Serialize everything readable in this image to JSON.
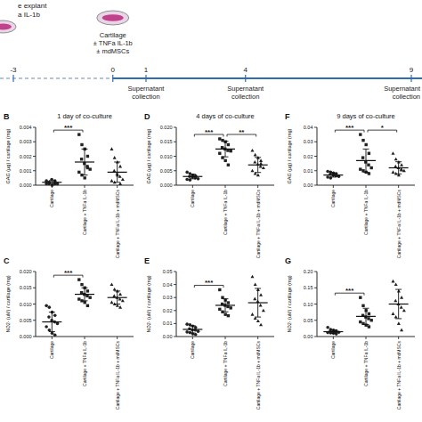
{
  "timeline": {
    "left_text": [
      "e explant",
      "a IL-1b"
    ],
    "days": [
      -3,
      0,
      1,
      4,
      9
    ],
    "center_text": [
      "Cartilage",
      "± TNFa IL-1b",
      "± mdMSCs"
    ],
    "events": [
      {
        "day": 1,
        "text": [
          "Supernatant",
          "collection"
        ]
      },
      {
        "day": 4,
        "text": [
          "Supernatant",
          "collection"
        ]
      },
      {
        "day": 9,
        "text": [
          "Supernatant",
          "collection"
        ]
      }
    ]
  },
  "chart_data": [
    {
      "type": "scatter",
      "panel": "B",
      "title": "1 day of co-culture",
      "y_label": "GAG (µg) / cartilage (mg)",
      "categories": [
        "Cartilage",
        "Cartilage + TNFa IL-1b",
        "Cartilage + TNFa IL-1b + mdMSCs"
      ],
      "points": [
        [
          0.0001,
          0.0002,
          0.0,
          0.0003,
          0.0001,
          0.0004,
          0.0002,
          0.0001,
          0.0003,
          0.0002,
          0.0,
          0.0001
        ],
        [
          0.0035,
          0.0028,
          0.0025,
          0.002,
          0.0018,
          0.0015,
          0.0013,
          0.0011,
          0.0009,
          0.0007,
          0.0005,
          0.0012
        ],
        [
          0.0025,
          0.0019,
          0.0016,
          0.0013,
          0.001,
          0.0008,
          0.0006,
          0.0004,
          0.0003,
          0.0002,
          0.0007,
          0.0001
        ]
      ],
      "values": [
        0.0002,
        0.0016,
        0.0009
      ],
      "errors": [
        0.00012,
        0.0009,
        0.0007
      ],
      "ylim": [
        0,
        0.004
      ],
      "yticks": [
        {
          "value": 0,
          "label": "0.000"
        },
        {
          "value": 0.001,
          "label": "0.001"
        },
        {
          "value": 0.002,
          "label": "0.002"
        },
        {
          "value": 0.003,
          "label": "0.003"
        },
        {
          "value": 0.004,
          "label": "0.004"
        }
      ],
      "annotations": [
        {
          "text": "***",
          "from": 0,
          "to": 1
        }
      ]
    },
    {
      "type": "scatter",
      "panel": "D",
      "title": "4 days of co-culture",
      "y_label": "GAG (µg) / cartilage (mg)",
      "categories": [
        "Cartilage",
        "Cartilage + TNFa IL-1b",
        "Cartilage + TNFa IL-1b + mdMSCs"
      ],
      "points": [
        [
          0.0045,
          0.004,
          0.0035,
          0.0032,
          0.003,
          0.0028,
          0.0025,
          0.0022,
          0.002,
          0.0018,
          0.0033,
          0.0027
        ],
        [
          0.016,
          0.0155,
          0.015,
          0.014,
          0.013,
          0.0125,
          0.012,
          0.0118,
          0.011,
          0.0095,
          0.0085,
          0.007
        ],
        [
          0.012,
          0.0105,
          0.0095,
          0.0085,
          0.008,
          0.0072,
          0.0065,
          0.006,
          0.005,
          0.004,
          0.0035,
          0.0075
        ]
      ],
      "values": [
        0.003,
        0.0125,
        0.007
      ],
      "errors": [
        0.0008,
        0.0027,
        0.0026
      ],
      "ylim": [
        0,
        0.02
      ],
      "yticks": [
        {
          "value": 0,
          "label": "0.000"
        },
        {
          "value": 0.005,
          "label": "0.005"
        },
        {
          "value": 0.01,
          "label": "0.010"
        },
        {
          "value": 0.015,
          "label": "0.015"
        },
        {
          "value": 0.02,
          "label": "0.020"
        }
      ],
      "annotations": [
        {
          "text": "***",
          "from": 0,
          "to": 1
        },
        {
          "text": "**",
          "from": 1,
          "to": 2
        }
      ]
    },
    {
      "type": "scatter",
      "panel": "F",
      "title": "9 days of co-culture",
      "y_label": "GAG (µg) / cartilage (mg)",
      "categories": [
        "Cartilage",
        "Cartilage + TNFa IL-1b",
        "Cartilage + TNFa IL-1b + mdMSCs"
      ],
      "points": [
        [
          0.0095,
          0.009,
          0.0085,
          0.008,
          0.0075,
          0.007,
          0.0065,
          0.006,
          0.0055,
          0.005,
          0.0072,
          0.0068
        ],
        [
          0.035,
          0.031,
          0.028,
          0.022,
          0.019,
          0.016,
          0.014,
          0.012,
          0.011,
          0.01,
          0.009,
          0.008
        ],
        [
          0.022,
          0.018,
          0.016,
          0.014,
          0.013,
          0.012,
          0.011,
          0.01,
          0.009,
          0.008,
          0.007,
          0.0105
        ]
      ],
      "values": [
        0.007,
        0.017,
        0.012
      ],
      "errors": [
        0.0014,
        0.008,
        0.0042
      ],
      "ylim": [
        0,
        0.04
      ],
      "yticks": [
        {
          "value": 0,
          "label": "0.00"
        },
        {
          "value": 0.01,
          "label": "0.01"
        },
        {
          "value": 0.02,
          "label": "0.02"
        },
        {
          "value": 0.03,
          "label": "0.03"
        },
        {
          "value": 0.04,
          "label": "0.04"
        }
      ],
      "annotations": [
        {
          "text": "***",
          "from": 0,
          "to": 1
        },
        {
          "text": "*",
          "from": 1,
          "to": 2
        }
      ]
    },
    {
      "type": "scatter",
      "panel": "C",
      "y_label": "NO2- (uM) / cartilage (mg)",
      "categories": [
        "Cartilage",
        "Cartilage + TNFa IL-1b",
        "Cartilage + TNFa IL-1b + mdMSCs"
      ],
      "points": [
        [
          0.0095,
          0.009,
          0.0075,
          0.0065,
          0.006,
          0.005,
          0.0045,
          0.004,
          0.003,
          0.002,
          0.001,
          0.0005
        ],
        [
          0.0175,
          0.016,
          0.015,
          0.014,
          0.0135,
          0.013,
          0.0125,
          0.012,
          0.0115,
          0.011,
          0.0105,
          0.0095
        ],
        [
          0.016,
          0.0145,
          0.014,
          0.013,
          0.0125,
          0.012,
          0.0115,
          0.011,
          0.0105,
          0.01,
          0.0095,
          0.009
        ]
      ],
      "values": [
        0.0045,
        0.013,
        0.012
      ],
      "errors": [
        0.003,
        0.002,
        0.002
      ],
      "ylim": [
        0,
        0.02
      ],
      "yticks": [
        {
          "value": 0,
          "label": "0.000"
        },
        {
          "value": 0.005,
          "label": "0.005"
        },
        {
          "value": 0.01,
          "label": "0.010"
        },
        {
          "value": 0.015,
          "label": "0.015"
        },
        {
          "value": 0.02,
          "label": "0.020"
        }
      ],
      "annotations": [
        {
          "text": "***",
          "from": 0,
          "to": 1
        }
      ]
    },
    {
      "type": "scatter",
      "panel": "E",
      "y_label": "NO2- (uM) / cartilage (mg)",
      "categories": [
        "Cartilage",
        "Cartilage + TNFa IL-1b",
        "Cartilage + TNFa IL-1b + mdMSCs"
      ],
      "points": [
        [
          0.0095,
          0.009,
          0.008,
          0.007,
          0.006,
          0.005,
          0.005,
          0.004,
          0.0035,
          0.003,
          0.002,
          0.0015
        ],
        [
          0.036,
          0.03,
          0.028,
          0.026,
          0.025,
          0.024,
          0.023,
          0.022,
          0.021,
          0.019,
          0.017,
          0.016
        ],
        [
          0.046,
          0.04,
          0.036,
          0.032,
          0.029,
          0.027,
          0.024,
          0.02,
          0.017,
          0.014,
          0.012,
          0.009
        ]
      ],
      "values": [
        0.0055,
        0.024,
        0.026
      ],
      "errors": [
        0.0028,
        0.005,
        0.011
      ],
      "ylim": [
        0,
        0.05
      ],
      "yticks": [
        {
          "value": 0,
          "label": "0.00"
        },
        {
          "value": 0.01,
          "label": "0.01"
        },
        {
          "value": 0.02,
          "label": "0.02"
        },
        {
          "value": 0.03,
          "label": "0.03"
        },
        {
          "value": 0.04,
          "label": "0.04"
        },
        {
          "value": 0.05,
          "label": "0.05"
        }
      ],
      "annotations": [
        {
          "text": "***",
          "from": 0,
          "to": 1
        }
      ]
    },
    {
      "type": "scatter",
      "panel": "G",
      "y_label": "NO2- (uM) / cartilage (mg)",
      "categories": [
        "Cartilage",
        "Cartilage + TNFa IL-1b",
        "Cartilage + TNFa IL-1b + mdMSCs"
      ],
      "points": [
        [
          0.028,
          0.022,
          0.02,
          0.018,
          0.016,
          0.015,
          0.014,
          0.013,
          0.012,
          0.011,
          0.01,
          0.008
        ],
        [
          0.12,
          0.095,
          0.08,
          0.07,
          0.065,
          0.06,
          0.055,
          0.05,
          0.045,
          0.04,
          0.035,
          0.03
        ],
        [
          0.17,
          0.16,
          0.14,
          0.12,
          0.11,
          0.1,
          0.09,
          0.08,
          0.07,
          0.06,
          0.04,
          0.02
        ]
      ],
      "values": [
        0.015,
        0.062,
        0.1
      ],
      "errors": [
        0.005,
        0.025,
        0.045
      ],
      "ylim": [
        0,
        0.2
      ],
      "yticks": [
        {
          "value": 0,
          "label": "0.00"
        },
        {
          "value": 0.05,
          "label": "0.05"
        },
        {
          "value": 0.1,
          "label": "0.10"
        },
        {
          "value": 0.15,
          "label": "0.15"
        },
        {
          "value": 0.2,
          "label": "0.20"
        }
      ],
      "annotations": [
        {
          "text": "***",
          "from": 0,
          "to": 1
        }
      ]
    }
  ]
}
